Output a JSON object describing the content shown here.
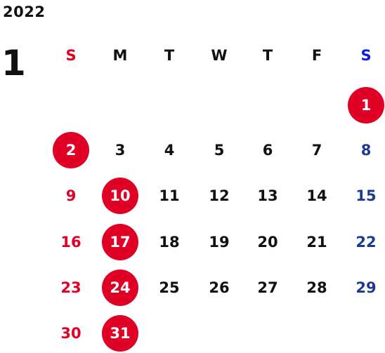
{
  "calendar": {
    "year": "2022",
    "month": "1",
    "colors": {
      "sunday": "#e00025",
      "saturday_header": "#0a1ee0",
      "saturday": "#1c3c90",
      "weekday": "#111111",
      "holiday_circle": "#e00025",
      "holiday_text": "#ffffff"
    },
    "weekdays": [
      {
        "label": "S",
        "kind": "sunday"
      },
      {
        "label": "M",
        "kind": "weekday"
      },
      {
        "label": "T",
        "kind": "weekday"
      },
      {
        "label": "W",
        "kind": "weekday"
      },
      {
        "label": "T",
        "kind": "weekday"
      },
      {
        "label": "F",
        "kind": "weekday"
      },
      {
        "label": "S",
        "kind": "saturday_header"
      }
    ],
    "weeks": [
      [
        null,
        null,
        null,
        null,
        null,
        null,
        {
          "label": "1",
          "kind": "saturday",
          "circled": true
        }
      ],
      [
        {
          "label": "2",
          "kind": "sunday",
          "circled": true
        },
        {
          "label": "3",
          "kind": "weekday"
        },
        {
          "label": "4",
          "kind": "weekday"
        },
        {
          "label": "5",
          "kind": "weekday"
        },
        {
          "label": "6",
          "kind": "weekday"
        },
        {
          "label": "7",
          "kind": "weekday"
        },
        {
          "label": "8",
          "kind": "saturday"
        }
      ],
      [
        {
          "label": "9",
          "kind": "sunday"
        },
        {
          "label": "10",
          "kind": "weekday",
          "circled": true
        },
        {
          "label": "11",
          "kind": "weekday"
        },
        {
          "label": "12",
          "kind": "weekday"
        },
        {
          "label": "13",
          "kind": "weekday"
        },
        {
          "label": "14",
          "kind": "weekday"
        },
        {
          "label": "15",
          "kind": "saturday"
        }
      ],
      [
        {
          "label": "16",
          "kind": "sunday"
        },
        {
          "label": "17",
          "kind": "weekday",
          "circled": true
        },
        {
          "label": "18",
          "kind": "weekday"
        },
        {
          "label": "19",
          "kind": "weekday"
        },
        {
          "label": "20",
          "kind": "weekday"
        },
        {
          "label": "21",
          "kind": "weekday"
        },
        {
          "label": "22",
          "kind": "saturday"
        }
      ],
      [
        {
          "label": "23",
          "kind": "sunday"
        },
        {
          "label": "24",
          "kind": "weekday",
          "circled": true
        },
        {
          "label": "25",
          "kind": "weekday"
        },
        {
          "label": "26",
          "kind": "weekday"
        },
        {
          "label": "27",
          "kind": "weekday"
        },
        {
          "label": "28",
          "kind": "weekday"
        },
        {
          "label": "29",
          "kind": "saturday"
        }
      ],
      [
        {
          "label": "30",
          "kind": "sunday"
        },
        {
          "label": "31",
          "kind": "weekday",
          "circled": true
        },
        null,
        null,
        null,
        null,
        null
      ]
    ]
  }
}
